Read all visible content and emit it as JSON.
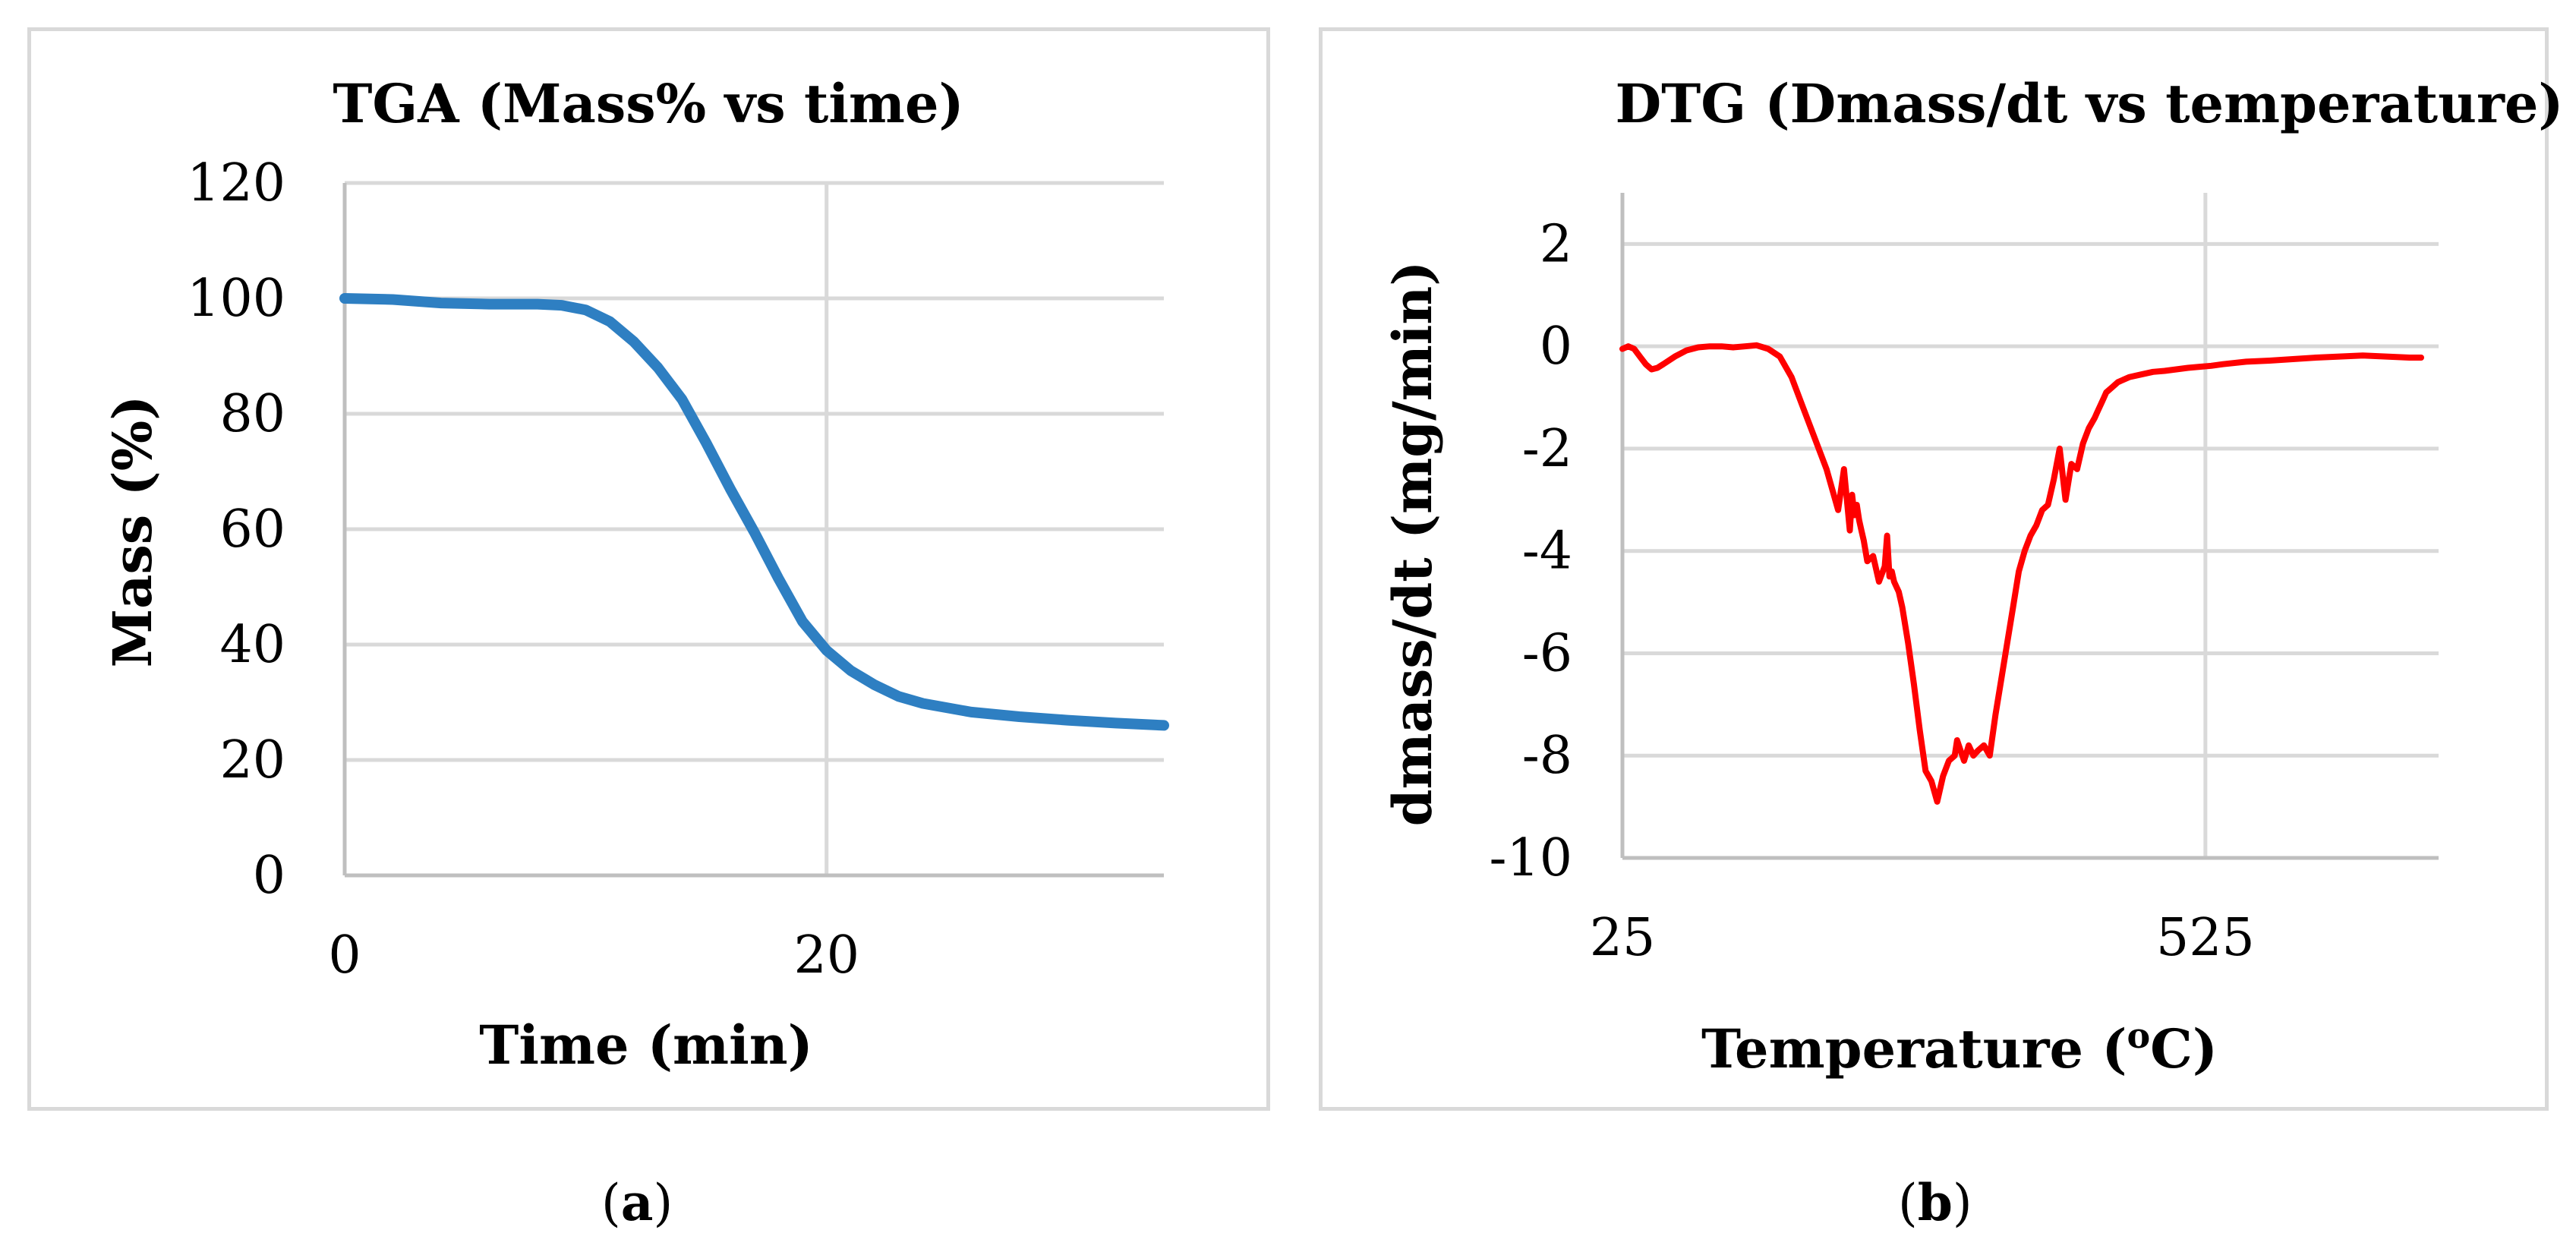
{
  "chart_data": [
    {
      "type": "line",
      "title": "TGA (Mass% vs time)",
      "xlabel": "Time (min)",
      "ylabel": "Mass (%)",
      "xlim": [
        0,
        34
      ],
      "ylim": [
        0,
        120
      ],
      "xticks": [
        0,
        20
      ],
      "yticks": [
        0,
        20,
        40,
        60,
        80,
        100,
        120
      ],
      "series": [
        {
          "name": "Mass",
          "color": "#2e7fc2",
          "x": [
            0,
            2,
            4,
            6,
            8,
            9,
            10,
            11,
            12,
            13,
            14,
            15,
            16,
            17,
            18,
            19,
            20,
            21,
            22,
            23,
            24,
            26,
            28,
            30,
            32,
            34
          ],
          "y": [
            100,
            99.8,
            99.2,
            99,
            99,
            98.8,
            98,
            96,
            92.5,
            88,
            82.5,
            75,
            67,
            59.5,
            51.5,
            44,
            39,
            35.5,
            33,
            31,
            29.8,
            28.3,
            27.5,
            26.9,
            26.4,
            26
          ]
        }
      ],
      "caption_letter": "a"
    },
    {
      "type": "line",
      "title": "DTG (Dmass/dt vs temperature)",
      "xlabel_main": "Temperature (",
      "xlabel_sup": "o",
      "xlabel_end": "C)",
      "ylabel": "dmass/dt  (mg/min)",
      "xlim": [
        25,
        725
      ],
      "ylim": [
        -10,
        3
      ],
      "xticks": [
        25,
        525
      ],
      "yticks": [
        -10,
        -8,
        -6,
        -4,
        -2,
        0,
        2
      ],
      "series": [
        {
          "name": "dmass/dt",
          "color": "#ff0000",
          "x": [
            25,
            30,
            35,
            40,
            45,
            50,
            55,
            60,
            70,
            80,
            90,
            100,
            110,
            120,
            130,
            140,
            150,
            160,
            170,
            180,
            190,
            200,
            210,
            215,
            220,
            222,
            224,
            226,
            228,
            230,
            232,
            235,
            240,
            245,
            250,
            252,
            254,
            256,
            258,
            260,
            262,
            265,
            270,
            275,
            280,
            285,
            290,
            295,
            300,
            305,
            310,
            312,
            315,
            318,
            322,
            326,
            330,
            335,
            340,
            345,
            350,
            355,
            360,
            365,
            370,
            375,
            380,
            385,
            390,
            395,
            400,
            405,
            410,
            415,
            420,
            425,
            430,
            432,
            434,
            436,
            438,
            440,
            445,
            450,
            460,
            470,
            480,
            490,
            500,
            510,
            520,
            530,
            540,
            560,
            580,
            600,
            620,
            640,
            660,
            680,
            700,
            710
          ],
          "y": [
            -0.05,
            0,
            -0.05,
            -0.2,
            -0.35,
            -0.45,
            -0.42,
            -0.35,
            -0.2,
            -0.08,
            -0.02,
            0,
            0,
            -0.02,
            0,
            0.02,
            -0.05,
            -0.2,
            -0.6,
            -1.2,
            -1.8,
            -2.4,
            -3.2,
            -2.4,
            -3.6,
            -2.9,
            -3.3,
            -3.1,
            -3.4,
            -3.6,
            -3.8,
            -4.2,
            -4.1,
            -4.6,
            -4.3,
            -3.7,
            -4.5,
            -4.4,
            -4.6,
            -4.7,
            -4.8,
            -5.1,
            -5.8,
            -6.6,
            -7.5,
            -8.3,
            -8.5,
            -8.9,
            -8.4,
            -8.1,
            -8,
            -7.7,
            -7.9,
            -8.1,
            -7.8,
            -8.0,
            -7.9,
            -7.8,
            -8.0,
            -7.2,
            -6.5,
            -5.8,
            -5.1,
            -4.4,
            -4.0,
            -3.7,
            -3.5,
            -3.2,
            -3.1,
            -2.6,
            -2.0,
            -3.0,
            -2.3,
            -2.4,
            -1.9,
            -1.6,
            -1.4,
            -1.3,
            -1.2,
            -1.1,
            -1.0,
            -0.9,
            -0.8,
            -0.7,
            -0.6,
            -0.55,
            -0.5,
            -0.48,
            -0.45,
            -0.42,
            -0.4,
            -0.38,
            -0.35,
            -0.3,
            -0.28,
            -0.25,
            -0.22,
            -0.2,
            -0.18,
            -0.2,
            -0.22,
            -0.22
          ]
        }
      ],
      "caption_letter": "b"
    }
  ]
}
